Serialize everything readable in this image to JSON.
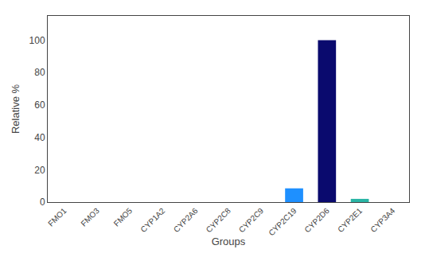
{
  "chart_data": {
    "type": "bar",
    "categories": [
      "FMO1",
      "FMO3",
      "FMO5",
      "CYP1A2",
      "CYP2A6",
      "CYP2C8",
      "CYP2C9",
      "CYP2C19",
      "CYP2D6",
      "CYP2E1",
      "CYP3A4"
    ],
    "values": [
      0,
      0,
      0,
      0,
      0,
      0,
      0,
      8.5,
      100,
      2.0,
      0
    ],
    "colors": [
      "#1a69b5",
      "#1a69b5",
      "#1a69b5",
      "#d04a02",
      "#d04a02",
      "#d04a02",
      "#d04a02",
      "#1e90ff",
      "#0a0a6e",
      "#2ab5a5",
      "#d04a02"
    ],
    "x_label": "Groups",
    "y_label": "Relative %",
    "ylim": [
      0,
      115
    ],
    "yticks": [
      0,
      20,
      40,
      60,
      80,
      100
    ],
    "grid": false
  }
}
